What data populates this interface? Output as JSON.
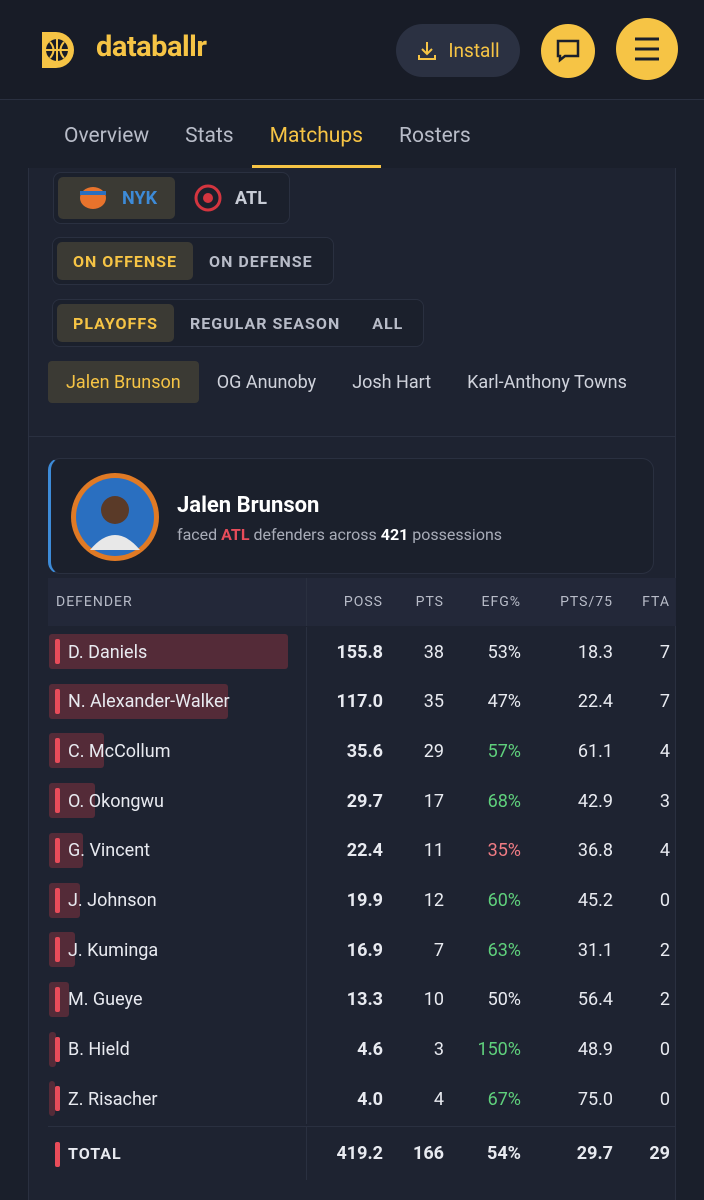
{
  "header": {
    "brand": "databallr",
    "install": "Install"
  },
  "tabs": [
    "Overview",
    "Stats",
    "Matchups",
    "Rosters"
  ],
  "active_tab": 2,
  "teams": [
    "NYK",
    "ATL"
  ],
  "active_team": 0,
  "side_toggle": [
    "ON OFFENSE",
    "ON DEFENSE"
  ],
  "active_side": 0,
  "season_toggle": [
    "PLAYOFFS",
    "REGULAR SEASON",
    "ALL"
  ],
  "active_season": 0,
  "players": [
    "Jalen Brunson",
    "OG Anunoby",
    "Josh Hart",
    "Karl-Anthony Towns"
  ],
  "active_player": 0,
  "card": {
    "name": "Jalen Brunson",
    "faced": "faced",
    "team": "ATL",
    "defenders_across": "defenders across",
    "possessions_count": "421",
    "possessions": "possessions"
  },
  "table": {
    "columns": [
      "DEFENDER",
      "POSS",
      "PTS",
      "EFG%",
      "PTS/75",
      "FTA"
    ],
    "rows": [
      [
        "D. Daniels",
        "155.8",
        "38",
        "53%",
        "18.3",
        "7"
      ],
      [
        "N. Alexander-Walker",
        "117.0",
        "35",
        "47%",
        "22.4",
        "7"
      ],
      [
        "C. McCollum",
        "35.6",
        "29",
        "57%",
        "61.1",
        "4"
      ],
      [
        "O. Okongwu",
        "29.7",
        "17",
        "68%",
        "42.9",
        "3"
      ],
      [
        "G. Vincent",
        "22.4",
        "11",
        "35%",
        "36.8",
        "4"
      ],
      [
        "J. Johnson",
        "19.9",
        "12",
        "60%",
        "45.2",
        "0"
      ],
      [
        "J. Kuminga",
        "16.9",
        "7",
        "63%",
        "31.1",
        "2"
      ],
      [
        "M. Gueye",
        "13.3",
        "10",
        "50%",
        "56.4",
        "2"
      ],
      [
        "B. Hield",
        "4.6",
        "3",
        "150%",
        "48.9",
        "0"
      ],
      [
        "Z. Risacher",
        "4.0",
        "4",
        "67%",
        "75.0",
        "0"
      ]
    ],
    "efg_tone": [
      null,
      null,
      "good",
      "good",
      "bad",
      "good",
      "good",
      null,
      "good",
      "good"
    ],
    "total": [
      "TOTAL",
      "419.2",
      "166",
      "54%",
      "29.7",
      "29"
    ]
  }
}
